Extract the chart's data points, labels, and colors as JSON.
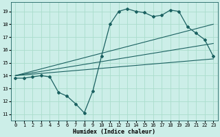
{
  "xlabel": "Humidex (Indice chaleur)",
  "bg_color": "#cceee8",
  "grid_color": "#aaddcc",
  "line_color": "#1a6060",
  "xlim": [
    -0.5,
    23.5
  ],
  "ylim": [
    10.5,
    19.7
  ],
  "xticks": [
    0,
    1,
    2,
    3,
    4,
    5,
    6,
    7,
    8,
    9,
    10,
    11,
    12,
    13,
    14,
    15,
    16,
    17,
    18,
    19,
    20,
    21,
    22,
    23
  ],
  "yticks": [
    11,
    12,
    13,
    14,
    15,
    16,
    17,
    18,
    19
  ],
  "series1_x": [
    0,
    1,
    2,
    3,
    4,
    5,
    6,
    7,
    8,
    9,
    10,
    11,
    12,
    13,
    14,
    15,
    16,
    17,
    18,
    19,
    20,
    21,
    22,
    23
  ],
  "series1_y": [
    13.8,
    13.8,
    13.9,
    14.0,
    13.9,
    12.7,
    12.4,
    11.8,
    11.1,
    12.8,
    15.5,
    18.0,
    19.0,
    19.2,
    19.0,
    18.9,
    18.6,
    18.7,
    19.1,
    19.0,
    17.8,
    17.3,
    16.8,
    15.5
  ],
  "series2_x": [
    0,
    23
  ],
  "series2_y": [
    14.0,
    15.3
  ],
  "series3_x": [
    0,
    23
  ],
  "series3_y": [
    14.0,
    16.5
  ],
  "series4_x": [
    0,
    23
  ],
  "series4_y": [
    14.0,
    18.0
  ]
}
